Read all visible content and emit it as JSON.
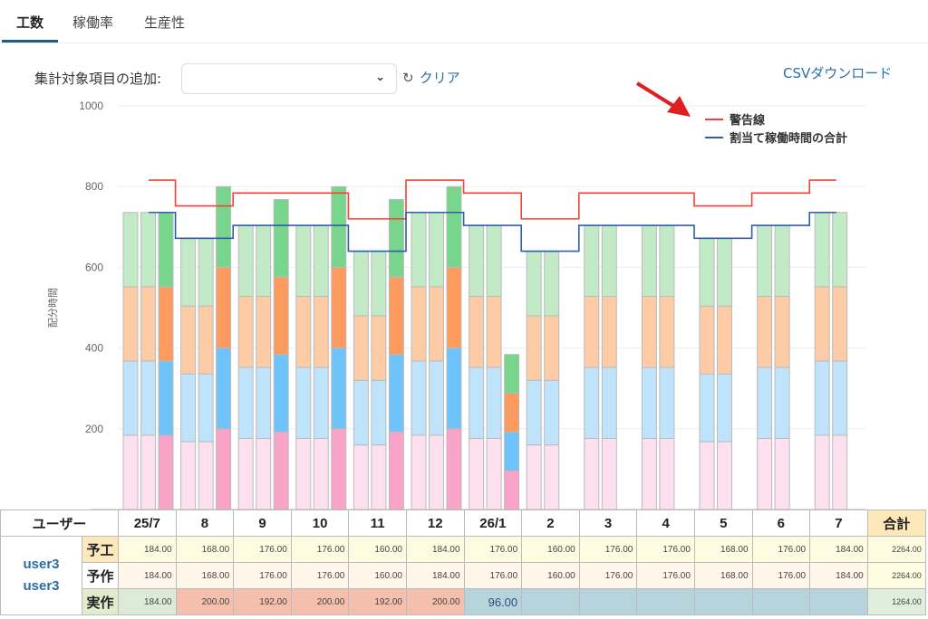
{
  "tabs": [
    {
      "label": "工数",
      "active": true
    },
    {
      "label": "稼働率",
      "active": false
    },
    {
      "label": "生産性",
      "active": false
    }
  ],
  "controls": {
    "add_label": "集計対象項目の追加:",
    "select_value": "",
    "clear_label": "クリア",
    "csv_label": "CSVダウンロード"
  },
  "chart_data": {
    "type": "bar",
    "ylabel": "配分時間",
    "ylim": [
      0,
      1000
    ],
    "yticks": [
      200,
      400,
      600,
      800,
      1000
    ],
    "categories": [
      "25/7",
      "8",
      "9",
      "10",
      "11",
      "12",
      "26/1",
      "2",
      "3",
      "4",
      "5",
      "6",
      "7"
    ],
    "stack_segments": 4,
    "series": [
      {
        "name": "予工",
        "values": [
          184,
          168,
          176,
          176,
          160,
          184,
          176,
          160,
          176,
          176,
          168,
          176,
          184
        ]
      },
      {
        "name": "予作",
        "values": [
          184,
          168,
          176,
          176,
          160,
          184,
          176,
          160,
          176,
          176,
          168,
          176,
          184
        ]
      },
      {
        "name": "実作",
        "values": [
          184,
          200,
          192,
          200,
          192,
          200,
          96,
          null,
          null,
          null,
          null,
          null,
          null
        ]
      }
    ],
    "lines": [
      {
        "name": "警告線",
        "color": "#f44336",
        "values": [
          816,
          752,
          784,
          784,
          720,
          816,
          784,
          720,
          784,
          784,
          752,
          784,
          816
        ]
      },
      {
        "name": "割当て稼働時間の合計",
        "color": "#2f5ea8",
        "values": [
          736,
          672,
          704,
          704,
          640,
          736,
          704,
          640,
          704,
          704,
          672,
          704,
          736
        ]
      }
    ],
    "legend": "top-right"
  },
  "table": {
    "user_header": "ユーザー",
    "total_header": "合計",
    "user_lines": [
      "user3",
      "user3"
    ],
    "rows": [
      {
        "label": "予工",
        "cells": [
          "184.00",
          "168.00",
          "176.00",
          "176.00",
          "160.00",
          "184.00",
          "176.00",
          "160.00",
          "176.00",
          "176.00",
          "168.00",
          "176.00",
          "184.00"
        ],
        "total": "2264.00"
      },
      {
        "label": "予作",
        "cells": [
          "184.00",
          "168.00",
          "176.00",
          "176.00",
          "160.00",
          "184.00",
          "176.00",
          "160.00",
          "176.00",
          "176.00",
          "168.00",
          "176.00",
          "184.00"
        ],
        "total": "2264.00"
      },
      {
        "label": "実作",
        "cells": [
          "184.00",
          "200.00",
          "192.00",
          "200.00",
          "192.00",
          "200.00",
          "96.00",
          "",
          "",
          "",
          "",
          "",
          ""
        ],
        "total": "1264.00"
      }
    ]
  }
}
